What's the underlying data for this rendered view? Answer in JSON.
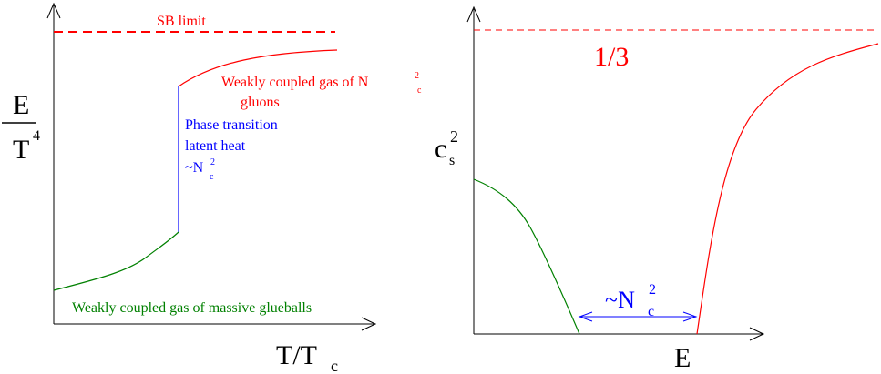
{
  "colors": {
    "axis": "#000000",
    "red": "#ff0000",
    "blue": "#0000ff",
    "green": "#008000"
  },
  "left_panel": {
    "ylabel_num": "E",
    "ylabel_den": "T",
    "ylabel_den_sup": "4",
    "xlabel_main": "T/T",
    "xlabel_sub": "c",
    "sb_limit_label": "SB limit",
    "red_label_line1": "Weakly coupled gas of N",
    "red_label_sup": "2",
    "red_label_sub": "c",
    "red_label_line2": "gluons",
    "blue_label_line1": "Phase transition",
    "blue_label_line2": "latent heat",
    "blue_label_tilde_n": "~N",
    "blue_label_sup": "2",
    "blue_label_sub": "c",
    "green_label": "Weakly coupled gas of massive glueballs"
  },
  "right_panel": {
    "ylabel_main": "c",
    "ylabel_sup": "2",
    "ylabel_sub": "s",
    "one_third_label": "1/3",
    "xlabel": "E",
    "gap_label_main": "~N",
    "gap_label_sup": "2",
    "gap_label_sub": "c"
  }
}
